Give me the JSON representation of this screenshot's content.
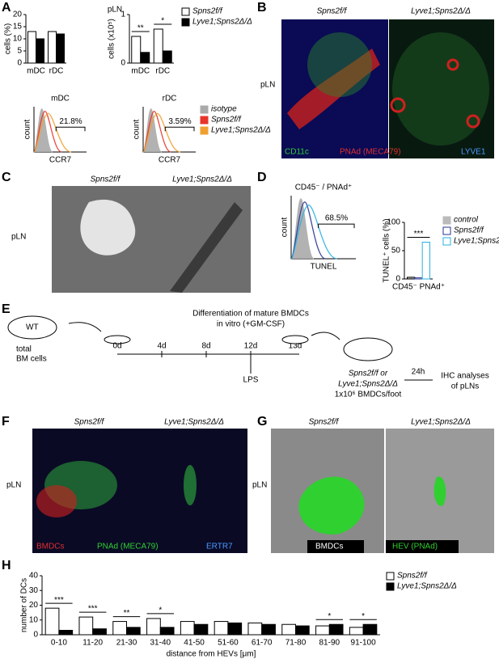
{
  "panel_labels": [
    "A",
    "B",
    "C",
    "D",
    "E",
    "F",
    "G",
    "H"
  ],
  "chart_data": [
    {
      "type": "bar",
      "title": "pLN",
      "ylabel": "cells (%)",
      "categories": [
        "mDC",
        "rDC"
      ],
      "series": [
        {
          "name": "Spns2f/f",
          "color": "#ffffff",
          "values": [
            13,
            13
          ]
        },
        {
          "name": "Lyve1;Spns2Δ/Δ",
          "color": "#000000",
          "values": [
            10,
            12
          ]
        }
      ],
      "ylim": [
        0,
        20
      ],
      "yticks": [
        0,
        5,
        10,
        15,
        20
      ]
    },
    {
      "type": "bar",
      "ylabel": "cells (x10⁵)",
      "categories": [
        "mDC",
        "rDC"
      ],
      "series": [
        {
          "name": "Spns2f/f",
          "color": "#ffffff",
          "values": [
            0.55,
            0.7
          ]
        },
        {
          "name": "Lyve1;Spns2Δ/Δ",
          "color": "#000000",
          "values": [
            0.22,
            0.25
          ]
        }
      ],
      "ylim": [
        0,
        1
      ],
      "yticks": [
        0,
        1
      ],
      "significance": [
        "**",
        "*"
      ],
      "legend": "right"
    },
    {
      "type": "flow",
      "title": "mDC",
      "xlabel": "CCR7",
      "ylabel": "count",
      "gate_label": "21.8%",
      "series": [
        {
          "name": "isotype",
          "color": "#aaaaaa"
        },
        {
          "name": "Spns2f/f",
          "color": "#e8342a"
        },
        {
          "name": "Lyve1;Spns2Δ/Δ",
          "color": "#f0a030"
        }
      ]
    },
    {
      "type": "flow",
      "title": "rDC",
      "xlabel": "CCR7",
      "ylabel": "count",
      "gate_label": "3.59%",
      "series": [
        {
          "name": "isotype",
          "color": "#aaaaaa"
        },
        {
          "name": "Spns2f/f",
          "color": "#e8342a"
        },
        {
          "name": "Lyve1;Spns2Δ/Δ",
          "color": "#f0a030"
        }
      ],
      "legend": "right"
    },
    {
      "type": "flow",
      "title": "CD45⁻ / PNAd⁺",
      "xlabel": "TUNEL",
      "ylabel": "count",
      "gate_label": "68.5%",
      "series": [
        {
          "name": "control",
          "color": "#aaaaaa"
        },
        {
          "name": "Spns2f/f",
          "color": "#2a3590"
        },
        {
          "name": "Lyve1;Spns2Δ/Δ",
          "color": "#2ab0e0"
        }
      ]
    },
    {
      "type": "bar",
      "ylabel": "TUNEL⁺ cells (%)",
      "categories": [
        "CD45⁻ PNAd⁺"
      ],
      "series": [
        {
          "name": "control",
          "color": "#bbbbbb",
          "values": [
            3
          ]
        },
        {
          "name": "Spns2f/f",
          "color": "#ffffff",
          "edgecolor": "#2a3590",
          "values": [
            2
          ]
        },
        {
          "name": "Lyve1;Spns2Δ/Δ",
          "color": "#ffffff",
          "edgecolor": "#2ab0e0",
          "values": [
            65
          ]
        }
      ],
      "ylim": [
        0,
        100
      ],
      "yticks": [
        0,
        50,
        100
      ],
      "significance": [
        "***"
      ],
      "legend": "right"
    },
    {
      "type": "bar",
      "ylabel": "number of DCs",
      "xlabel": "distance from HEVs [μm]",
      "categories": [
        "0-10",
        "11-20",
        "21-30",
        "31-40",
        "41-50",
        "51-60",
        "61-70",
        "71-80",
        "81-90",
        "91-100"
      ],
      "series": [
        {
          "name": "Spns2f/f",
          "color": "#ffffff",
          "values": [
            18,
            12,
            9,
            11,
            9,
            9,
            8,
            7,
            6,
            5
          ]
        },
        {
          "name": "Lyve1;Spns2Δ/Δ",
          "color": "#000000",
          "values": [
            3,
            4,
            5,
            5,
            7,
            8,
            7,
            6,
            7,
            7
          ]
        }
      ],
      "ylim": [
        0,
        40
      ],
      "yticks": [
        0,
        10,
        20,
        30,
        40
      ],
      "significance": [
        "***",
        "***",
        "**",
        "*",
        null,
        null,
        null,
        null,
        "*",
        "*"
      ],
      "legend": "right"
    }
  ],
  "images": {
    "B": {
      "left": "Spns2f/f",
      "right": "Lyve1;Spns2Δ/Δ",
      "tissue": "pLN",
      "stains": [
        "CD11c",
        "PNAd (MECA79)",
        "LYVE1"
      ]
    },
    "C": {
      "left": "Spns2f/f",
      "right": "Lyve1;Spns2Δ/Δ",
      "tissue": "pLN"
    },
    "F": {
      "left": "Spns2f/f",
      "right": "Lyve1;Spns2Δ/Δ",
      "tissue": "pLN",
      "stains": [
        "BMDCs",
        "PNAd (MECA79)",
        "ERTR7"
      ]
    },
    "G": {
      "left": "Spns2f/f",
      "right": "Lyve1;Spns2Δ/Δ",
      "tissue": "pLN",
      "stains": [
        "BMDCs",
        "HEV (PNAd)"
      ]
    }
  },
  "diagram_e": {
    "mouse": "WT",
    "source": [
      "total",
      "BM cells"
    ],
    "heading": [
      "Differentiation of mature BMDCs",
      "in vitro (+GM-CSF)"
    ],
    "days": [
      "0d",
      "4d",
      "8d",
      "12d",
      "13d"
    ],
    "stimulus": "LPS",
    "recipients": [
      "Spns2f/f or",
      "Lyve1;Spns2Δ/Δ",
      "1x10⁶ BMDCs/foot"
    ],
    "interval": "24h",
    "readout": [
      "IHC analyses",
      "of pLNs"
    ]
  }
}
